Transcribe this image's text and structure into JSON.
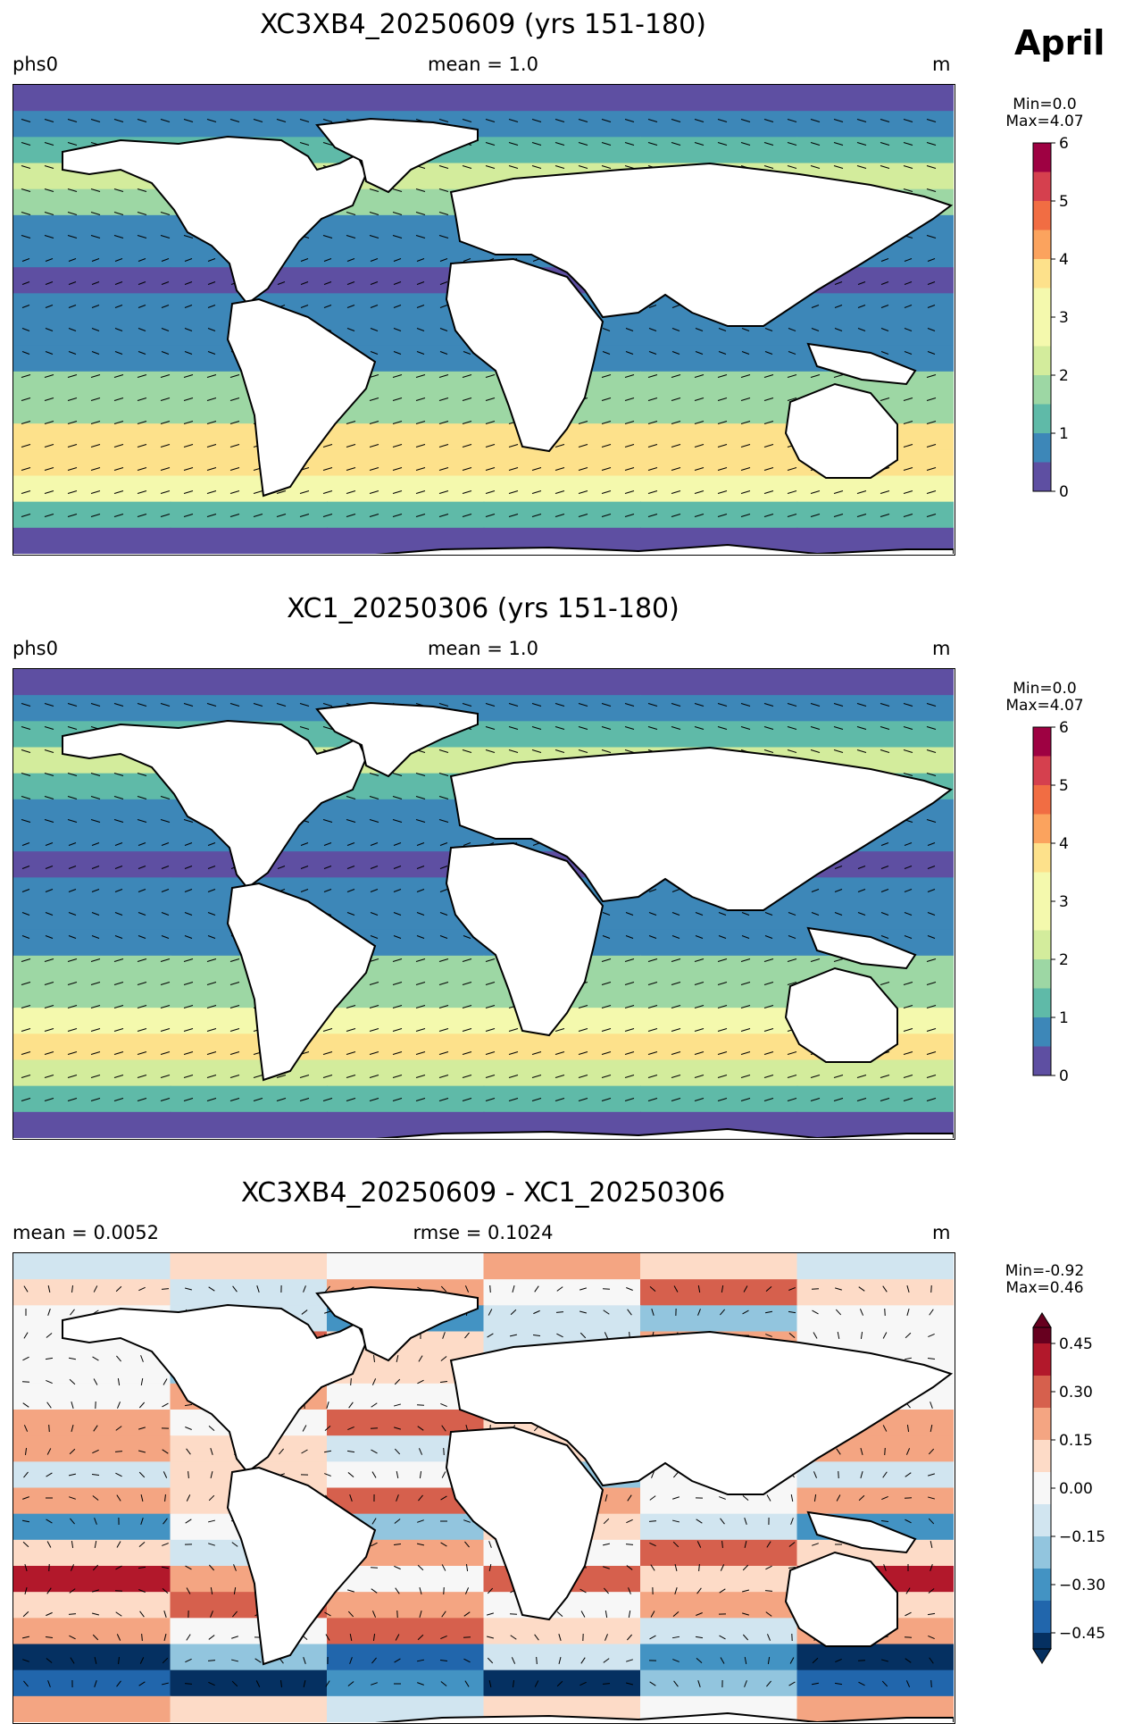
{
  "figure": {
    "month": "April"
  },
  "panels": [
    {
      "title": "XC3XB4_20250609 (yrs 151-180)",
      "left_label": "phs0",
      "center_label": "mean = 1.0",
      "right_label": "m",
      "colorbar": {
        "stats_line1": "Min=0.0",
        "stats_line2": "Max=4.07",
        "ticks": [
          "0",
          "1",
          "2",
          "3",
          "4",
          "5",
          "6"
        ]
      }
    },
    {
      "title": "XC1_20250306 (yrs 151-180)",
      "left_label": "phs0",
      "center_label": "mean = 1.0",
      "right_label": "m",
      "colorbar": {
        "stats_line1": "Min=0.0",
        "stats_line2": "Max=4.07",
        "ticks": [
          "0",
          "1",
          "2",
          "3",
          "4",
          "5",
          "6"
        ]
      }
    },
    {
      "title": "XC3XB4_20250609 - XC1_20250306",
      "left_label": "mean = 0.0052",
      "center_label": "rmse = 0.1024",
      "right_label": "m",
      "colorbar": {
        "stats_line1": "Min=-0.92",
        "stats_line2": "Max=0.46",
        "ticks": [
          "0.45",
          "0.30",
          "0.15",
          "0.00",
          "−0.15",
          "−0.30",
          "−0.45"
        ]
      }
    }
  ],
  "colors": {
    "seq_cmap": [
      "#5e4fa2",
      "#3d87b8",
      "#5fbaa8",
      "#9dd7a4",
      "#d3ec9c",
      "#f4f9ad",
      "#fde18b",
      "#fba35e",
      "#f16d43",
      "#d5404e",
      "#9e0142"
    ],
    "div_cmap": [
      "#053061",
      "#2166ac",
      "#4393c3",
      "#92c5de",
      "#d1e5f0",
      "#f7f7f7",
      "#fddbc7",
      "#f4a582",
      "#d6604d",
      "#b2182b",
      "#67001f"
    ],
    "land": "#ffffff",
    "coast": "#000000"
  },
  "chart_data": [
    {
      "type": "heatmap",
      "title": "XC3XB4_20250609 (yrs 151-180)",
      "variable": "phs0",
      "units": "m",
      "mean": 1.0,
      "min": 0.0,
      "max": 4.07,
      "colorbar_range": [
        0,
        6
      ],
      "lat_band_values_north_to_south": [
        0.2,
        0.6,
        1.6,
        2.3,
        1.7,
        1.2,
        0.7,
        0.5,
        0.6,
        0.9,
        1.4,
        1.8,
        2.2,
        3.0,
        3.6,
        3.3,
        1.2,
        0.2
      ],
      "vectors": "wave direction arrows"
    },
    {
      "type": "heatmap",
      "title": "XC1_20250306 (yrs 151-180)",
      "variable": "phs0",
      "units": "m",
      "mean": 1.0,
      "min": 0.0,
      "max": 4.07,
      "colorbar_range": [
        0,
        6
      ],
      "lat_band_values_north_to_south": [
        0.2,
        0.5,
        1.3,
        2.0,
        1.5,
        1.0,
        0.6,
        0.4,
        0.5,
        0.8,
        1.2,
        1.5,
        1.9,
        2.7,
        3.3,
        3.0,
        1.0,
        0.2
      ],
      "vectors": "wave direction arrows"
    },
    {
      "type": "heatmap",
      "title": "XC3XB4_20250609 - XC1_20250306",
      "units": "m",
      "mean": 0.0052,
      "rmse": 0.1024,
      "min": -0.92,
      "max": 0.46,
      "colorbar_range": [
        -0.5,
        0.5
      ],
      "lat_band_values_north_to_south": [
        0.05,
        0.1,
        -0.15,
        0.1,
        -0.1,
        0.12,
        0.2,
        0.05,
        -0.05,
        0.15,
        -0.1,
        0.1,
        0.2,
        0.15,
        0.1,
        -0.3,
        -0.4,
        0.05
      ],
      "vectors": "difference vectors"
    }
  ]
}
